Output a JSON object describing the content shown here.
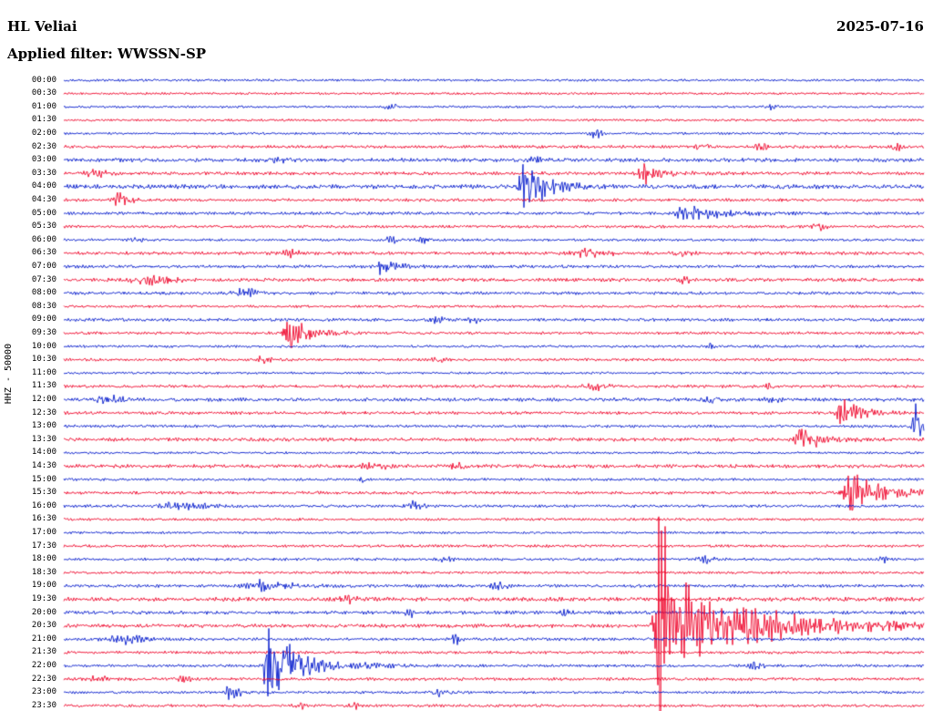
{
  "chart_data": {
    "type": "line",
    "subtype": "helicorder-seismogram",
    "title": "HL Veliai",
    "date": "2025-07-16",
    "filter": "Applied filter: WWSSN-SP",
    "ylabel": "HHZ - 50000",
    "row_minutes": 30,
    "legend": "none",
    "grid": false,
    "noise_amp": 1.1,
    "colors": {
      "blue": "#0018cc",
      "red": "#ee0028"
    },
    "rows": [
      {
        "t": "00:00",
        "c": "b",
        "n": 1.0
      },
      {
        "t": "00:30",
        "c": "r",
        "n": 1.0
      },
      {
        "t": "01:00",
        "c": "b",
        "n": 1.0
      },
      {
        "t": "01:30",
        "c": "r",
        "n": 1.0
      },
      {
        "t": "02:00",
        "c": "b",
        "n": 1.0
      },
      {
        "t": "02:30",
        "c": "r",
        "n": 1.3
      },
      {
        "t": "03:00",
        "c": "b",
        "n": 1.6
      },
      {
        "t": "03:30",
        "c": "r",
        "n": 1.4
      },
      {
        "t": "04:00",
        "c": "b",
        "n": 1.8
      },
      {
        "t": "04:30",
        "c": "r",
        "n": 1.3
      },
      {
        "t": "05:00",
        "c": "b",
        "n": 1.3
      },
      {
        "t": "05:30",
        "c": "r",
        "n": 1.2
      },
      {
        "t": "06:00",
        "c": "b",
        "n": 1.1
      },
      {
        "t": "06:30",
        "c": "r",
        "n": 1.4
      },
      {
        "t": "07:00",
        "c": "b",
        "n": 1.3
      },
      {
        "t": "07:30",
        "c": "r",
        "n": 1.5
      },
      {
        "t": "08:00",
        "c": "b",
        "n": 1.3
      },
      {
        "t": "08:30",
        "c": "r",
        "n": 1.1
      },
      {
        "t": "09:00",
        "c": "b",
        "n": 1.3
      },
      {
        "t": "09:30",
        "c": "r",
        "n": 1.2
      },
      {
        "t": "10:00",
        "c": "b",
        "n": 1.1
      },
      {
        "t": "10:30",
        "c": "r",
        "n": 1.2
      },
      {
        "t": "11:00",
        "c": "b",
        "n": 1.0
      },
      {
        "t": "11:30",
        "c": "r",
        "n": 1.3
      },
      {
        "t": "12:00",
        "c": "b",
        "n": 1.5
      },
      {
        "t": "12:30",
        "c": "r",
        "n": 1.3
      },
      {
        "t": "13:00",
        "c": "b",
        "n": 1.2
      },
      {
        "t": "13:30",
        "c": "r",
        "n": 1.5
      },
      {
        "t": "14:00",
        "c": "b",
        "n": 1.0
      },
      {
        "t": "14:30",
        "c": "r",
        "n": 1.5
      },
      {
        "t": "15:00",
        "c": "b",
        "n": 1.1
      },
      {
        "t": "15:30",
        "c": "r",
        "n": 1.3
      },
      {
        "t": "16:00",
        "c": "b",
        "n": 1.2
      },
      {
        "t": "16:30",
        "c": "r",
        "n": 1.1
      },
      {
        "t": "17:00",
        "c": "b",
        "n": 1.0
      },
      {
        "t": "17:30",
        "c": "r",
        "n": 1.2
      },
      {
        "t": "18:00",
        "c": "b",
        "n": 1.2
      },
      {
        "t": "18:30",
        "c": "r",
        "n": 1.1
      },
      {
        "t": "19:00",
        "c": "b",
        "n": 1.3
      },
      {
        "t": "19:30",
        "c": "r",
        "n": 1.7
      },
      {
        "t": "20:00",
        "c": "b",
        "n": 1.5
      },
      {
        "t": "20:30",
        "c": "r",
        "n": 1.6
      },
      {
        "t": "21:00",
        "c": "b",
        "n": 1.3
      },
      {
        "t": "21:30",
        "c": "r",
        "n": 1.2
      },
      {
        "t": "22:00",
        "c": "b",
        "n": 1.2
      },
      {
        "t": "22:30",
        "c": "r",
        "n": 1.3
      },
      {
        "t": "23:00",
        "c": "b",
        "n": 1.1
      },
      {
        "t": "23:30",
        "c": "r",
        "n": 1.2
      }
    ],
    "events": [
      {
        "t": "01:00",
        "x": 0.381,
        "amp": 3,
        "w": 6
      },
      {
        "t": "01:00",
        "x": 0.821,
        "amp": 2.5,
        "w": 5
      },
      {
        "t": "02:00",
        "x": 0.62,
        "amp": 4,
        "w": 6
      },
      {
        "t": "02:30",
        "x": 0.742,
        "amp": 3,
        "w": 5
      },
      {
        "t": "02:30",
        "x": 0.81,
        "amp": 3,
        "w": 5
      },
      {
        "t": "02:30",
        "x": 0.969,
        "amp": 4,
        "w": 4
      },
      {
        "t": "03:00",
        "x": 0.25,
        "amp": 2,
        "w": 8
      },
      {
        "t": "03:00",
        "x": 0.55,
        "amp": 2,
        "w": 8
      },
      {
        "t": "03:30",
        "x": 0.04,
        "amp": 3,
        "w": 10
      },
      {
        "t": "03:30",
        "x": 0.678,
        "amp": 9,
        "w": 6,
        "tail": 18
      },
      {
        "t": "04:00",
        "x": 0.535,
        "amp": 28,
        "w": 6,
        "tail": 22
      },
      {
        "t": "04:30",
        "x": 0.061,
        "amp": 8,
        "w": 2,
        "tail": 10
      },
      {
        "t": "05:00",
        "x": 0.72,
        "amp": 7,
        "w": 5,
        "tail": 40
      },
      {
        "t": "05:30",
        "x": 0.879,
        "amp": 3,
        "w": 5
      },
      {
        "t": "06:00",
        "x": 0.085,
        "amp": 2.5,
        "w": 5
      },
      {
        "t": "06:00",
        "x": 0.381,
        "amp": 3,
        "w": 5
      },
      {
        "t": "06:00",
        "x": 0.418,
        "amp": 3,
        "w": 5
      },
      {
        "t": "06:30",
        "x": 0.265,
        "amp": 3,
        "w": 6
      },
      {
        "t": "06:30",
        "x": 0.614,
        "amp": 4,
        "w": 14
      },
      {
        "t": "06:30",
        "x": 0.72,
        "amp": 3,
        "w": 6
      },
      {
        "t": "07:00",
        "x": 0.371,
        "amp": 7,
        "w": 5,
        "tail": 15
      },
      {
        "t": "07:30",
        "x": 0.106,
        "amp": 3.5,
        "w": 18
      },
      {
        "t": "07:30",
        "x": 0.72,
        "amp": 3,
        "w": 6
      },
      {
        "t": "08:00",
        "x": 0.212,
        "amp": 4,
        "w": 10
      },
      {
        "t": "09:00",
        "x": 0.434,
        "amp": 2.5,
        "w": 6
      },
      {
        "t": "09:00",
        "x": 0.477,
        "amp": 2.5,
        "w": 6
      },
      {
        "t": "09:30",
        "x": 0.26,
        "amp": 18,
        "w": 3,
        "tail": 20
      },
      {
        "t": "10:00",
        "x": 0.752,
        "amp": 2.5,
        "w": 4
      },
      {
        "t": "10:30",
        "x": 0.233,
        "amp": 3,
        "w": 6
      },
      {
        "t": "10:30",
        "x": 0.434,
        "amp": 2.5,
        "w": 5
      },
      {
        "t": "11:30",
        "x": 0.62,
        "amp": 3,
        "w": 8
      },
      {
        "t": "11:30",
        "x": 0.821,
        "amp": 2.5,
        "w": 5
      },
      {
        "t": "12:00",
        "x": 0.053,
        "amp": 3,
        "w": 12
      },
      {
        "t": "12:00",
        "x": 0.752,
        "amp": 3,
        "w": 6
      },
      {
        "t": "12:00",
        "x": 0.826,
        "amp": 3,
        "w": 6
      },
      {
        "t": "12:30",
        "x": 0.906,
        "amp": 11,
        "w": 5,
        "tail": 20
      },
      {
        "t": "13:00",
        "x": 0.99,
        "amp": 20,
        "w": 2,
        "tail": 8
      },
      {
        "t": "13:30",
        "x": 0.858,
        "amp": 13,
        "w": 6,
        "tail": 18
      },
      {
        "t": "14:30",
        "x": 0.36,
        "amp": 3,
        "w": 10
      },
      {
        "t": "14:30",
        "x": 0.456,
        "amp": 3,
        "w": 6
      },
      {
        "t": "15:00",
        "x": 0.35,
        "amp": 4,
        "w": 3
      },
      {
        "t": "15:30",
        "x": 0.916,
        "amp": 20,
        "w": 6,
        "tail": 30
      },
      {
        "t": "16:00",
        "x": 0.132,
        "amp": 5,
        "w": 12,
        "tail": 25
      },
      {
        "t": "16:00",
        "x": 0.408,
        "amp": 4,
        "w": 6
      },
      {
        "t": "18:00",
        "x": 0.445,
        "amp": 3,
        "w": 6
      },
      {
        "t": "18:00",
        "x": 0.747,
        "amp": 3,
        "w": 6
      },
      {
        "t": "18:00",
        "x": 0.953,
        "amp": 2.5,
        "w": 4
      },
      {
        "t": "19:00",
        "x": 0.233,
        "amp": 6,
        "w": 12,
        "tail": 25
      },
      {
        "t": "19:00",
        "x": 0.508,
        "amp": 4,
        "w": 6
      },
      {
        "t": "19:30",
        "x": 0.328,
        "amp": 3,
        "w": 8
      },
      {
        "t": "20:00",
        "x": 0.403,
        "amp": 3,
        "w": 5
      },
      {
        "t": "20:00",
        "x": 0.583,
        "amp": 3,
        "w": 5
      },
      {
        "t": "20:30",
        "x": 0.694,
        "amp": 125,
        "w": 4,
        "tail": 14
      },
      {
        "t": "20:30",
        "x": 0.73,
        "amp": 25,
        "w": 8,
        "tail": 60
      },
      {
        "t": "20:30",
        "x": 0.8,
        "amp": 8,
        "w": 20,
        "tail": 120
      },
      {
        "t": "21:00",
        "x": 0.074,
        "amp": 4,
        "w": 15
      },
      {
        "t": "21:00",
        "x": 0.456,
        "amp": 5,
        "w": 5
      },
      {
        "t": "22:00",
        "x": 0.238,
        "amp": 65,
        "w": 3,
        "tail": 12
      },
      {
        "t": "22:00",
        "x": 0.26,
        "amp": 12,
        "w": 6,
        "tail": 45
      },
      {
        "t": "22:00",
        "x": 0.805,
        "amp": 4,
        "w": 5
      },
      {
        "t": "22:30",
        "x": 0.04,
        "amp": 3,
        "w": 6
      },
      {
        "t": "22:30",
        "x": 0.14,
        "amp": 2.5,
        "w": 5
      },
      {
        "t": "23:00",
        "x": 0.191,
        "amp": 7,
        "w": 3,
        "tail": 12
      },
      {
        "t": "23:00",
        "x": 0.434,
        "amp": 5,
        "w": 4,
        "tail": 10
      },
      {
        "t": "23:30",
        "x": 0.275,
        "amp": 3,
        "w": 5
      },
      {
        "t": "23:30",
        "x": 0.339,
        "amp": 3,
        "w": 4
      }
    ]
  }
}
